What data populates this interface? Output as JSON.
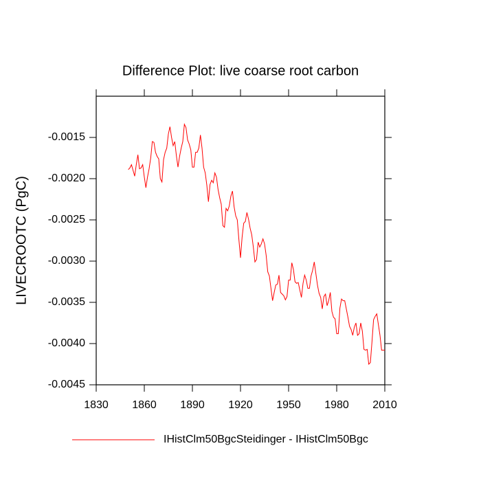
{
  "chart_data": {
    "type": "line",
    "title": "Difference Plot: live coarse root carbon",
    "y_label": "LIVECROOTC  (PgC)",
    "x": [
      1850,
      1851,
      1852,
      1853,
      1854,
      1855,
      1856,
      1857,
      1858,
      1859,
      1860,
      1861,
      1862,
      1863,
      1864,
      1865,
      1866,
      1867,
      1868,
      1869,
      1870,
      1871,
      1872,
      1873,
      1874,
      1875,
      1876,
      1877,
      1878,
      1879,
      1880,
      1881,
      1882,
      1883,
      1884,
      1885,
      1886,
      1887,
      1888,
      1889,
      1890,
      1891,
      1892,
      1893,
      1894,
      1895,
      1896,
      1897,
      1898,
      1899,
      1900,
      1901,
      1902,
      1903,
      1904,
      1905,
      1906,
      1907,
      1908,
      1909,
      1910,
      1911,
      1912,
      1913,
      1914,
      1915,
      1916,
      1917,
      1918,
      1919,
      1920,
      1921,
      1922,
      1923,
      1924,
      1925,
      1926,
      1927,
      1928,
      1929,
      1930,
      1931,
      1932,
      1933,
      1934,
      1935,
      1936,
      1937,
      1938,
      1939,
      1940,
      1941,
      1942,
      1943,
      1944,
      1945,
      1946,
      1947,
      1948,
      1949,
      1950,
      1951,
      1952,
      1953,
      1954,
      1955,
      1956,
      1957,
      1958,
      1959,
      1960,
      1961,
      1962,
      1963,
      1964,
      1965,
      1966,
      1967,
      1968,
      1969,
      1970,
      1971,
      1972,
      1973,
      1974,
      1975,
      1976,
      1977,
      1978,
      1979,
      1980,
      1981,
      1982,
      1983,
      1984,
      1985,
      1986,
      1987,
      1988,
      1989,
      1990,
      1991,
      1992,
      1993,
      1994,
      1995,
      1996,
      1997,
      1998,
      1999,
      2000,
      2001,
      2002,
      2003,
      2004,
      2005,
      2006,
      2007,
      2008,
      2009,
      2010
    ],
    "series": [
      {
        "name": "IHistClm50BgcSteidinger - IHistClm50Bgc",
        "color": "#ff0000",
        "values": [
          -0.00189,
          -0.00187,
          -0.00183,
          -0.0019,
          -0.00197,
          -0.00183,
          -0.00171,
          -0.00188,
          -0.00187,
          -0.00183,
          -0.00198,
          -0.00211,
          -0.00198,
          -0.00188,
          -0.00175,
          -0.00155,
          -0.00156,
          -0.00168,
          -0.00173,
          -0.00176,
          -0.002,
          -0.00204,
          -0.00177,
          -0.00168,
          -0.00163,
          -0.00146,
          -0.00137,
          -0.0015,
          -0.0016,
          -0.00155,
          -0.00172,
          -0.00186,
          -0.00173,
          -0.00163,
          -0.00155,
          -0.00134,
          -0.00138,
          -0.00153,
          -0.00158,
          -0.00165,
          -0.00186,
          -0.00186,
          -0.00168,
          -0.00168,
          -0.00163,
          -0.00147,
          -0.00163,
          -0.00186,
          -0.00193,
          -0.00208,
          -0.00228,
          -0.00207,
          -0.00202,
          -0.00205,
          -0.00193,
          -0.00198,
          -0.00213,
          -0.00223,
          -0.00231,
          -0.00257,
          -0.00259,
          -0.00236,
          -0.00239,
          -0.00233,
          -0.00221,
          -0.00215,
          -0.00234,
          -0.00245,
          -0.0025,
          -0.00274,
          -0.00296,
          -0.00271,
          -0.00254,
          -0.00252,
          -0.00241,
          -0.00249,
          -0.0026,
          -0.00268,
          -0.00283,
          -0.00301,
          -0.00298,
          -0.00277,
          -0.00283,
          -0.00279,
          -0.00273,
          -0.00279,
          -0.00293,
          -0.00313,
          -0.00318,
          -0.00333,
          -0.00348,
          -0.00338,
          -0.00329,
          -0.00328,
          -0.00317,
          -0.00338,
          -0.0034,
          -0.00342,
          -0.00347,
          -0.00343,
          -0.00323,
          -0.00323,
          -0.00302,
          -0.0031,
          -0.00325,
          -0.00327,
          -0.00326,
          -0.00335,
          -0.00344,
          -0.00327,
          -0.00317,
          -0.00323,
          -0.00333,
          -0.00333,
          -0.00318,
          -0.00311,
          -0.00301,
          -0.00315,
          -0.00329,
          -0.00339,
          -0.00344,
          -0.00358,
          -0.00343,
          -0.0034,
          -0.00354,
          -0.00348,
          -0.00338,
          -0.00361,
          -0.00368,
          -0.0037,
          -0.00388,
          -0.00388,
          -0.00357,
          -0.00346,
          -0.00348,
          -0.00348,
          -0.00358,
          -0.00368,
          -0.00379,
          -0.00383,
          -0.0039,
          -0.0038,
          -0.00375,
          -0.0039,
          -0.00388,
          -0.00375,
          -0.00385,
          -0.00407,
          -0.00408,
          -0.00407,
          -0.00425,
          -0.00423,
          -0.00398,
          -0.00371,
          -0.00367,
          -0.00364,
          -0.00377,
          -0.0039,
          -0.00408,
          -0.00408,
          -0.00408
        ]
      }
    ],
    "xlim": [
      1830,
      2010
    ],
    "xticks": [
      1830,
      1860,
      1890,
      1920,
      1950,
      1980,
      2010
    ],
    "ylim": [
      -0.0045,
      -0.001
    ],
    "yticks": [
      -0.0045,
      {
        "value": -0.004,
        "label": "-0.0040"
      },
      -0.0035,
      {
        "value": -0.003,
        "label": "-0.0030"
      },
      -0.0025,
      {
        "value": -0.002,
        "label": "-0.0020"
      },
      -0.0015
    ],
    "grid": false,
    "legend": "bottom"
  }
}
